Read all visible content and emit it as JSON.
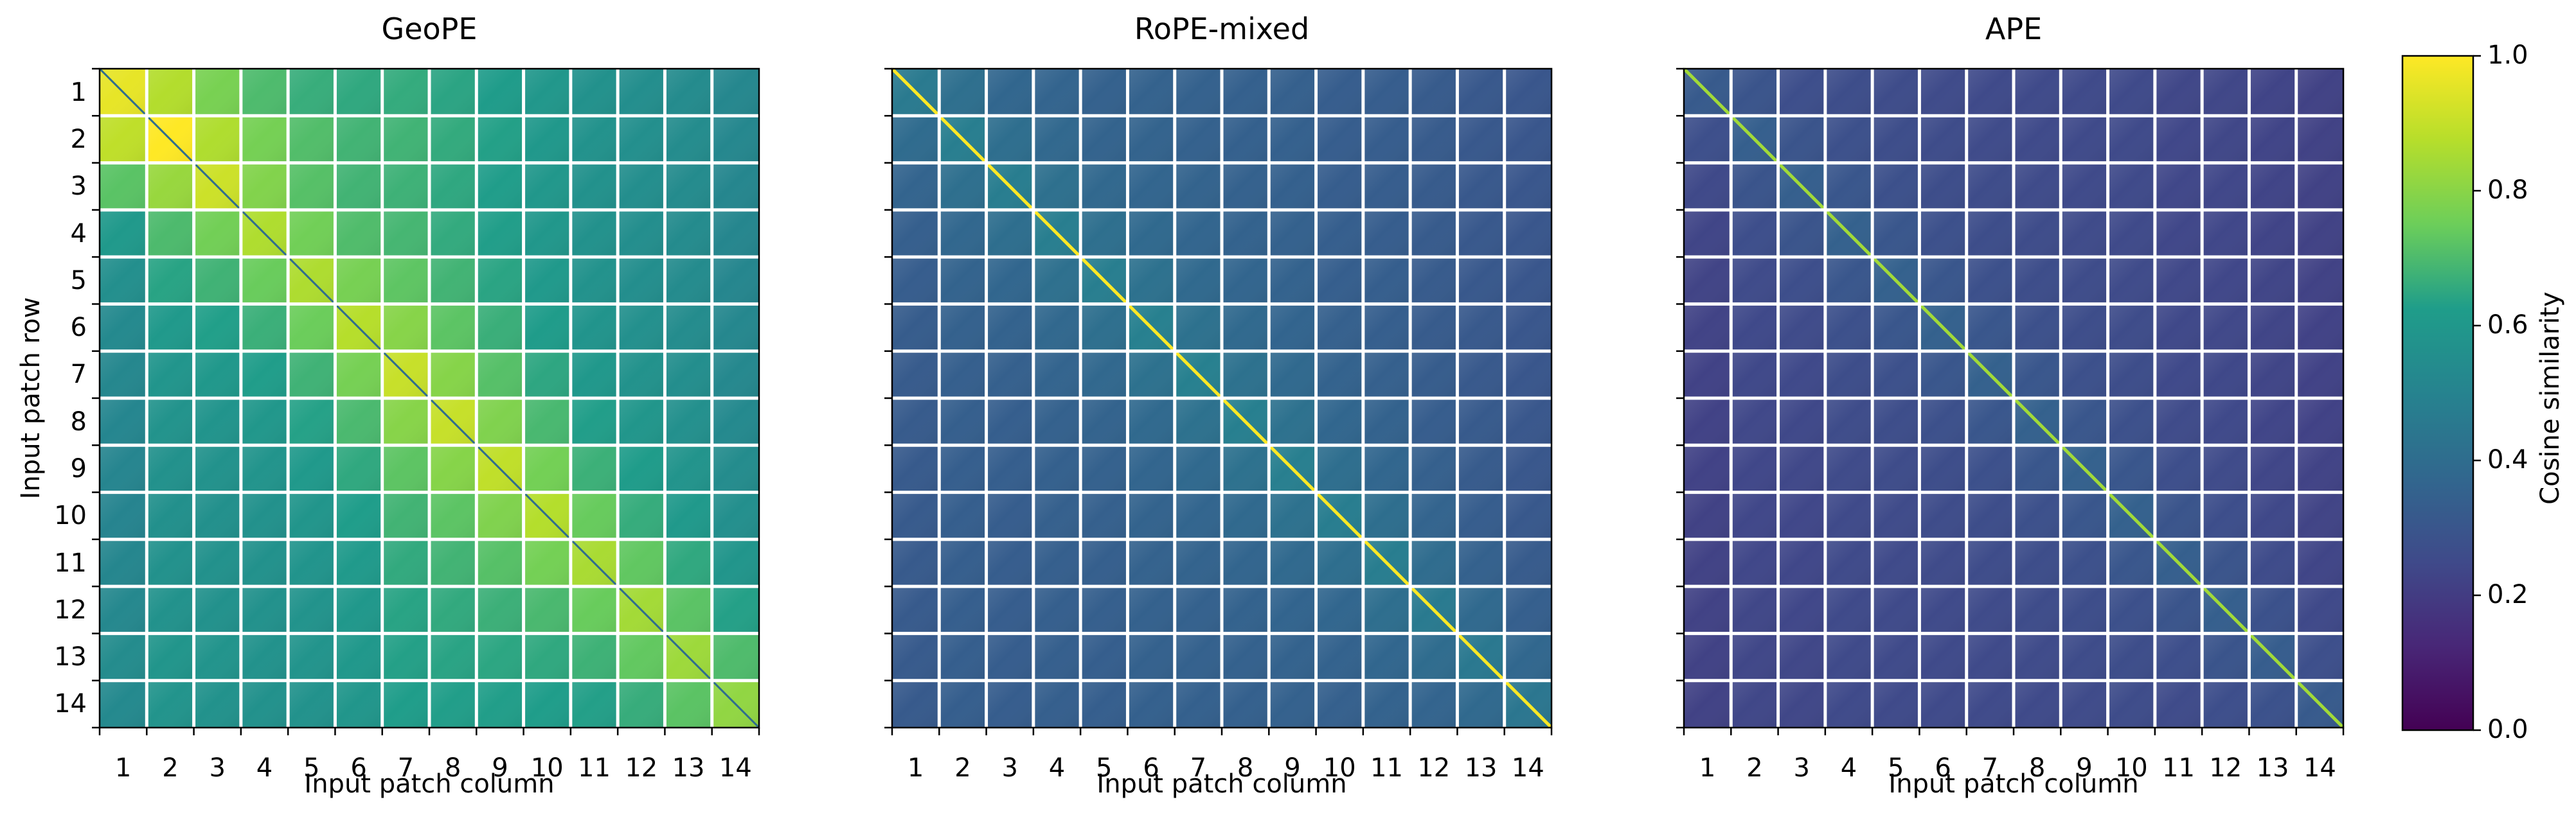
{
  "chart_data": {
    "type": "heatmap",
    "panels": [
      {
        "title": "GeoPE",
        "xlabel": "Input patch column",
        "ylabel": "Input patch row",
        "model": {
          "base": 0.48,
          "diag": 0.3,
          "diag_decay": 2.2,
          "col_boost": [
            0.0,
            0.06,
            0.06,
            0.06,
            0.07,
            0.09,
            0.12,
            0.12,
            0.11,
            0.09,
            0.07,
            0.06,
            0.05,
            0.03
          ],
          "row_boost": [
            0.18,
            0.22,
            0.12,
            0.05,
            0.03,
            0.02,
            0.02,
            0.02,
            0.02,
            0.02,
            0.03,
            0.04,
            0.06,
            0.05
          ],
          "self_peak": 0.32,
          "self_diag_dark": true
        }
      },
      {
        "title": "RoPE-mixed",
        "xlabel": "Input patch column",
        "ylabel": "",
        "model": {
          "base": 0.3,
          "diag": 0.14,
          "diag_decay": 1.6,
          "col_boost": [
            0.0,
            0.02,
            0.02,
            0.03,
            0.03,
            0.04,
            0.04,
            0.04,
            0.04,
            0.03,
            0.03,
            0.02,
            0.01,
            0.0
          ],
          "row_boost": [
            0.02,
            0.02,
            0.02,
            0.02,
            0.02,
            0.02,
            0.02,
            0.02,
            0.02,
            0.02,
            0.02,
            0.02,
            0.02,
            0.02
          ],
          "self_peak": 0.75,
          "self_diag_dark": false
        }
      },
      {
        "title": "APE",
        "xlabel": "Input patch column",
        "ylabel": "",
        "model": {
          "base": 0.22,
          "diag": 0.1,
          "diag_decay": 1.5,
          "col_boost": [
            0.0,
            0.02,
            0.02,
            0.03,
            0.03,
            0.03,
            0.03,
            0.03,
            0.03,
            0.03,
            0.02,
            0.02,
            0.01,
            0.0
          ],
          "row_boost": [
            0.0,
            0.0,
            0.0,
            0.0,
            0.0,
            0.0,
            0.0,
            0.0,
            0.0,
            0.0,
            0.0,
            0.0,
            0.0,
            0.0
          ],
          "self_peak": 0.62,
          "self_diag_dark": false
        }
      }
    ],
    "grid_size": 14,
    "tick_labels": [
      "1",
      "2",
      "3",
      "4",
      "5",
      "6",
      "7",
      "8",
      "9",
      "10",
      "11",
      "12",
      "13",
      "14"
    ],
    "colorbar": {
      "label": "Cosine similarity",
      "min": 0.0,
      "max": 1.0,
      "ticks": [
        "0.0",
        "0.2",
        "0.4",
        "0.6",
        "0.8",
        "1.0"
      ],
      "colormap": "viridis",
      "colormap_stops": [
        "#440154",
        "#482777",
        "#3f4a8a",
        "#31678e",
        "#26838f",
        "#1f9d8a",
        "#6cce5a",
        "#b6de2b",
        "#fee825"
      ]
    },
    "grid_line_color": "#ffffff"
  }
}
